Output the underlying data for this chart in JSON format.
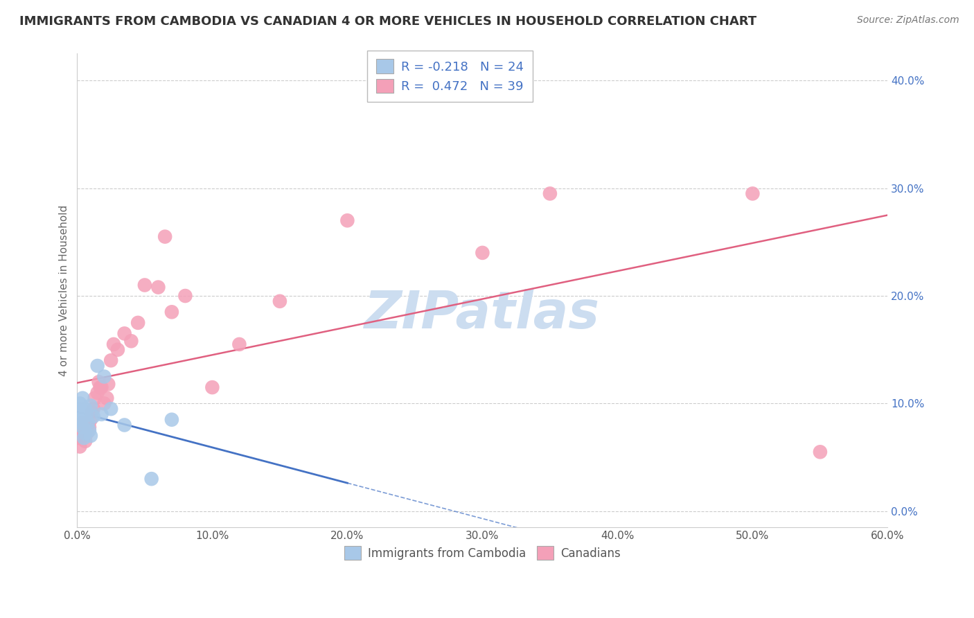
{
  "title": "IMMIGRANTS FROM CAMBODIA VS CANADIAN 4 OR MORE VEHICLES IN HOUSEHOLD CORRELATION CHART",
  "source": "Source: ZipAtlas.com",
  "ylabel": "4 or more Vehicles in Household",
  "xlim": [
    0.0,
    0.6
  ],
  "ylim": [
    -0.015,
    0.425
  ],
  "xticks": [
    0.0,
    0.1,
    0.2,
    0.3,
    0.4,
    0.5,
    0.6
  ],
  "yticks": [
    0.0,
    0.1,
    0.2,
    0.3,
    0.4
  ],
  "series_blue": {
    "label": "Immigrants from Cambodia",
    "R": -0.218,
    "N": 24,
    "color": "#a8c8e8",
    "line_color": "#4472c4",
    "x": [
      0.001,
      0.002,
      0.002,
      0.003,
      0.003,
      0.004,
      0.004,
      0.005,
      0.005,
      0.006,
      0.006,
      0.007,
      0.008,
      0.009,
      0.01,
      0.01,
      0.012,
      0.015,
      0.018,
      0.02,
      0.025,
      0.035,
      0.055,
      0.07
    ],
    "y": [
      0.095,
      0.1,
      0.085,
      0.082,
      0.092,
      0.078,
      0.105,
      0.088,
      0.068,
      0.095,
      0.072,
      0.09,
      0.082,
      0.075,
      0.098,
      0.07,
      0.088,
      0.135,
      0.09,
      0.125,
      0.095,
      0.08,
      0.03,
      0.085
    ]
  },
  "series_pink": {
    "label": "Canadians",
    "R": 0.472,
    "N": 39,
    "color": "#f4a0b8",
    "line_color": "#e06080",
    "x": [
      0.001,
      0.002,
      0.003,
      0.004,
      0.005,
      0.006,
      0.007,
      0.008,
      0.009,
      0.01,
      0.011,
      0.012,
      0.013,
      0.015,
      0.016,
      0.017,
      0.018,
      0.02,
      0.022,
      0.023,
      0.025,
      0.027,
      0.03,
      0.035,
      0.04,
      0.045,
      0.05,
      0.06,
      0.065,
      0.07,
      0.08,
      0.1,
      0.12,
      0.15,
      0.2,
      0.3,
      0.35,
      0.5,
      0.55
    ],
    "y": [
      0.068,
      0.06,
      0.075,
      0.082,
      0.07,
      0.065,
      0.072,
      0.08,
      0.078,
      0.085,
      0.092,
      0.095,
      0.105,
      0.11,
      0.12,
      0.115,
      0.115,
      0.1,
      0.105,
      0.118,
      0.14,
      0.155,
      0.15,
      0.165,
      0.158,
      0.175,
      0.21,
      0.208,
      0.255,
      0.185,
      0.2,
      0.115,
      0.155,
      0.195,
      0.27,
      0.24,
      0.295,
      0.295,
      0.055
    ]
  },
  "blue_line_solid_xmax": 0.2,
  "watermark": "ZIPatlas",
  "watermark_color": "#ccddf0",
  "background_color": "#ffffff",
  "grid_color": "#cccccc",
  "ytick_color": "#4472c4",
  "xtick_color": "#555555",
  "ylabel_color": "#666666",
  "title_color": "#333333",
  "source_color": "#777777"
}
